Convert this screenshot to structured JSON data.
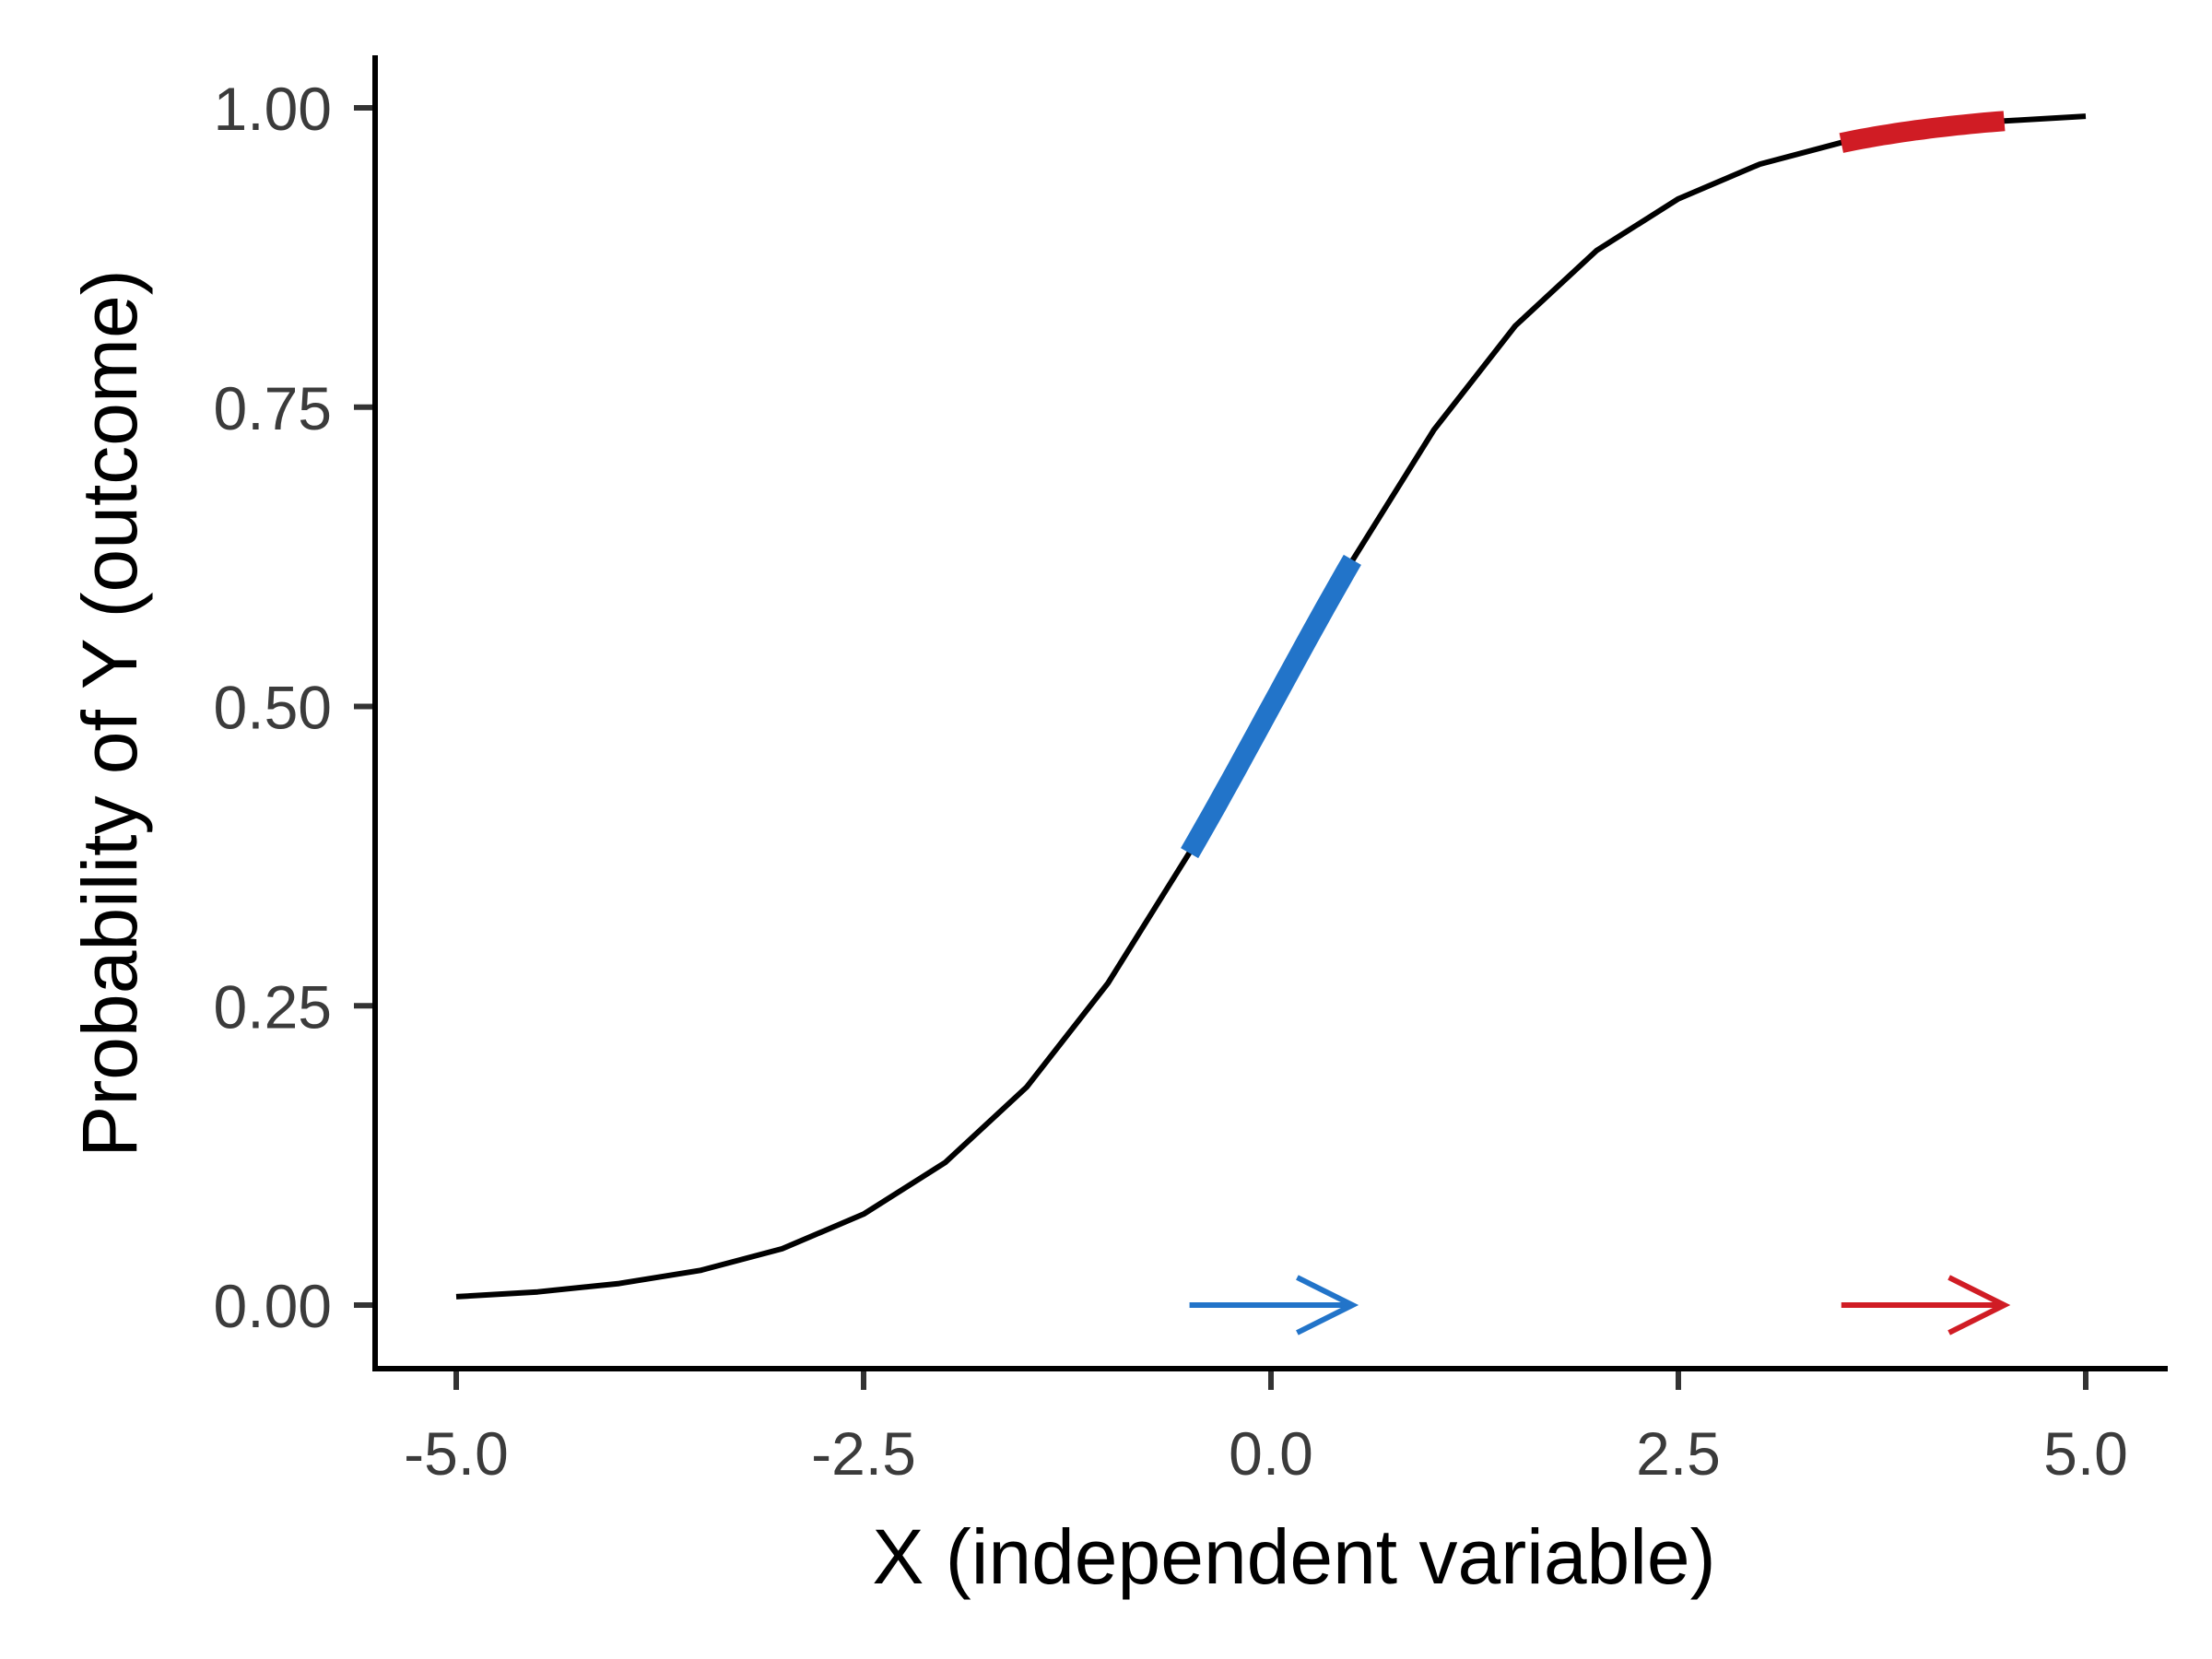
{
  "chart_data": {
    "type": "line",
    "title": "",
    "xlabel": "X (independent variable)",
    "ylabel": "Probability of Y (outcome)",
    "xlim": [
      -5.0,
      5.0
    ],
    "ylim": [
      0.0,
      1.0
    ],
    "x_ticks": [
      "-5.0",
      "-2.5",
      "0.0",
      "2.5",
      "5.0"
    ],
    "y_ticks": [
      "0.00",
      "0.25",
      "0.50",
      "0.75",
      "1.00"
    ],
    "x_tick_values": [
      -5.0,
      -2.5,
      0.0,
      2.5,
      5.0
    ],
    "y_tick_values": [
      0.0,
      0.25,
      0.5,
      0.75,
      1.0
    ],
    "grid": false,
    "legend": "none",
    "series": [
      {
        "x": [
          -5.0,
          -4.5,
          -4.0,
          -3.5,
          -3.0,
          -2.5,
          -2.0,
          -1.5,
          -1.0,
          -0.5,
          0.0,
          0.5,
          1.0,
          1.5,
          2.0,
          2.5,
          3.0,
          3.5,
          4.0,
          4.5,
          5.0
        ],
        "y": [
          0.007,
          0.011,
          0.018,
          0.029,
          0.047,
          0.076,
          0.119,
          0.182,
          0.269,
          0.378,
          0.5,
          0.622,
          0.731,
          0.818,
          0.881,
          0.924,
          0.953,
          0.971,
          0.982,
          0.989,
          0.993
        ],
        "color": "#000000"
      }
    ],
    "highlights": [
      {
        "x_range": [
          -0.5,
          0.5
        ],
        "color": "#2274c9"
      },
      {
        "x_range": [
          3.5,
          4.5
        ],
        "color": "#d01c24"
      }
    ],
    "arrows": [
      {
        "x_from": -0.5,
        "x_to": 0.5,
        "y": 0.0,
        "color": "#2274c9"
      },
      {
        "x_from": 3.5,
        "x_to": 4.5,
        "y": 0.0,
        "color": "#d01c24"
      }
    ]
  }
}
